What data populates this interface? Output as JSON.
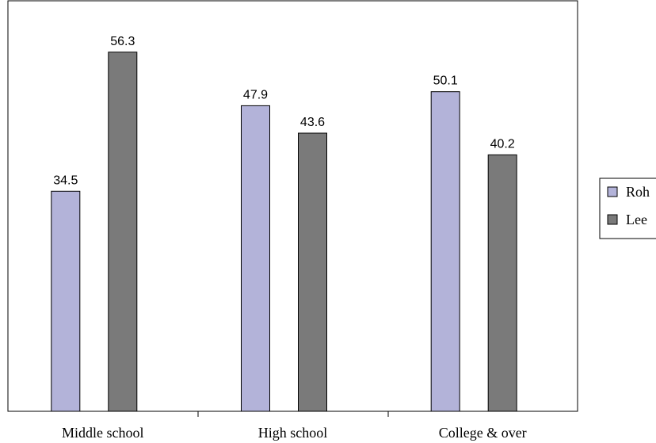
{
  "chart_data": {
    "type": "bar",
    "title": "",
    "xlabel": "",
    "ylabel": "",
    "categories": [
      "Middle school",
      "High school",
      "College & over"
    ],
    "series": [
      {
        "name": "Roh",
        "values": [
          34.5,
          47.9,
          50.1
        ],
        "color": "#b3b3d9"
      },
      {
        "name": "Lee",
        "values": [
          56.3,
          43.6,
          40.2
        ],
        "color": "#7a7a7a"
      }
    ],
    "ylim": [
      0,
      60
    ],
    "grid": false,
    "legend_position": "right",
    "data_labels": true
  }
}
